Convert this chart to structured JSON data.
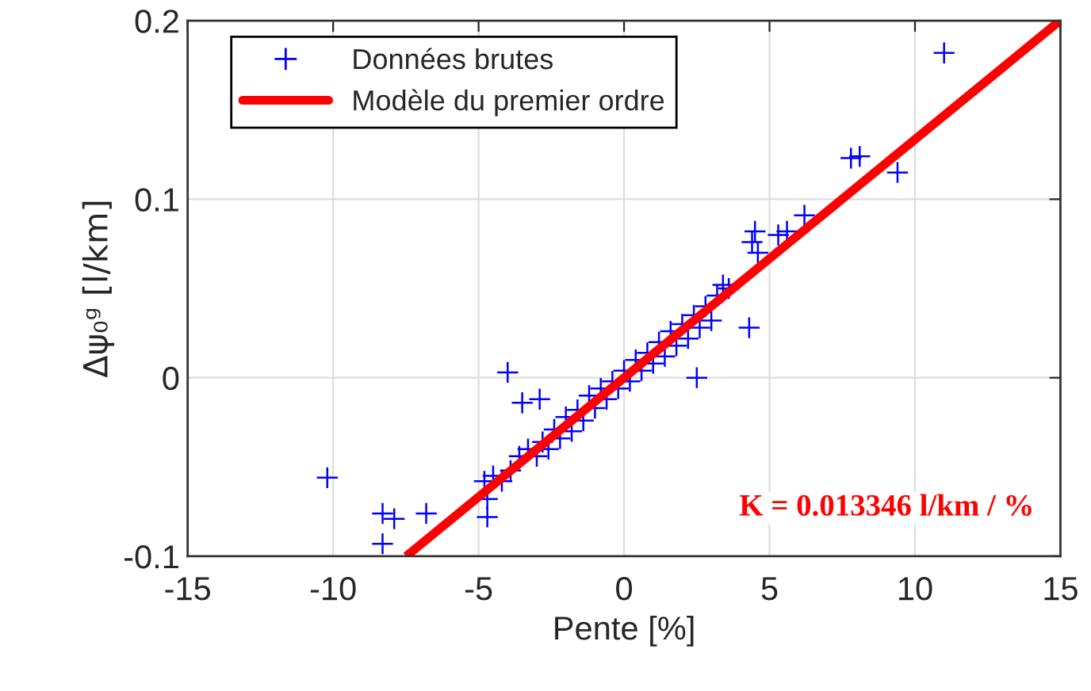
{
  "chart_data": {
    "type": "scatter",
    "xlabel": "Pente [%]",
    "ylabel": "Δψ₀ᵍ [l/km]",
    "xlim": [
      -15,
      15
    ],
    "ylim": [
      -0.1,
      0.2
    ],
    "xticks": [
      -15,
      -10,
      -5,
      0,
      5,
      10,
      15
    ],
    "yticks": [
      -0.1,
      0,
      0.1,
      0.2
    ],
    "grid": true,
    "legend": "top left",
    "annotations": [
      "K = 0.013346 l/km / %"
    ],
    "series": [
      {
        "name": "Données brutes",
        "color": "#0000ff",
        "marker": "cross",
        "x": [
          11.0,
          7.8,
          8.1,
          9.4,
          -10.2,
          -8.3,
          -7.9,
          -6.8,
          -8.3,
          -4.0,
          -3.5,
          4.3,
          2.5,
          4.5,
          4.4,
          4.6,
          5.6,
          6.2,
          5.3,
          -4.8,
          -4.7,
          -4.5,
          -4.2,
          -3.9,
          -3.6,
          -3.3,
          -3.0,
          -2.8,
          -2.6,
          -2.4,
          -2.2,
          -2.0,
          -1.8,
          -1.6,
          -1.4,
          -1.2,
          -1.0,
          -0.8,
          -0.6,
          -0.4,
          -0.2,
          0.0,
          0.2,
          0.4,
          0.6,
          0.8,
          1.0,
          1.2,
          1.4,
          1.6,
          1.8,
          2.0,
          2.2,
          2.4,
          2.6,
          2.8,
          3.0,
          3.2,
          3.4,
          3.6,
          -4.7,
          -2.9
        ],
        "values": [
          0.182,
          0.123,
          0.124,
          0.115,
          -0.056,
          -0.076,
          -0.079,
          -0.076,
          -0.093,
          0.003,
          -0.014,
          0.028,
          0.0,
          0.082,
          0.076,
          0.07,
          0.082,
          0.091,
          0.08,
          -0.058,
          -0.068,
          -0.055,
          -0.058,
          -0.052,
          -0.044,
          -0.04,
          -0.044,
          -0.036,
          -0.04,
          -0.029,
          -0.034,
          -0.022,
          -0.03,
          -0.018,
          -0.024,
          -0.01,
          -0.017,
          -0.006,
          -0.012,
          -0.002,
          -0.006,
          0.004,
          -0.002,
          0.01,
          0.004,
          0.014,
          0.008,
          0.02,
          0.012,
          0.026,
          0.018,
          0.03,
          0.022,
          0.035,
          0.028,
          0.04,
          0.032,
          0.046,
          0.052,
          0.05,
          -0.078,
          -0.012
        ]
      },
      {
        "name": "Modèle du premier ordre",
        "color": "#ff0000",
        "type": "line",
        "x": [
          -7.49,
          14.98
        ],
        "values": [
          -0.1,
          0.2
        ]
      }
    ]
  }
}
